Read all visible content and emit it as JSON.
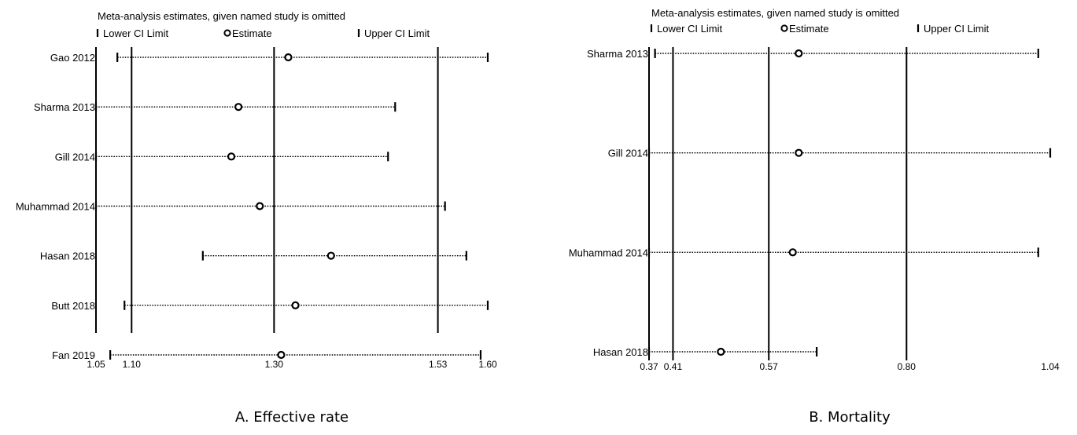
{
  "chart_data": [
    {
      "type": "forest",
      "header": "Meta-analysis estimates, given named study is omitted",
      "legend": {
        "lower": "Lower CI Limit",
        "estimate": "Estimate",
        "upper": "Upper CI Limit"
      },
      "caption": "A. Effective rate",
      "xlim": [
        1.05,
        1.6
      ],
      "ticks": [
        "1.05",
        "1.10",
        "1.30",
        "1.53",
        "1.60"
      ],
      "ref_lines": [
        1.05,
        1.1,
        1.3,
        1.53
      ],
      "studies": [
        {
          "name": "Gao 2012",
          "lower": 1.08,
          "estimate": 1.32,
          "upper": 1.6
        },
        {
          "name": "Sharma 2013",
          "lower": 1.05,
          "estimate": 1.25,
          "upper": 1.47
        },
        {
          "name": "Gill 2014",
          "lower": 1.05,
          "estimate": 1.24,
          "upper": 1.46
        },
        {
          "name": "Muhammad 2014",
          "lower": 1.05,
          "estimate": 1.28,
          "upper": 1.54
        },
        {
          "name": "Hasan 2018",
          "lower": 1.2,
          "estimate": 1.38,
          "upper": 1.57
        },
        {
          "name": "Butt 2018",
          "lower": 1.09,
          "estimate": 1.33,
          "upper": 1.6
        },
        {
          "name": "Fan 2019",
          "lower": 1.07,
          "estimate": 1.31,
          "upper": 1.59
        }
      ]
    },
    {
      "type": "forest",
      "header": "Meta-analysis estimates, given named study is omitted",
      "legend": {
        "lower": "Lower CI Limit",
        "estimate": "Estimate",
        "upper": "Upper CI Limit"
      },
      "caption": "B. Mortality",
      "xlim": [
        0.37,
        1.04
      ],
      "ticks": [
        "0.37",
        "0.41",
        "0.57",
        "0.80",
        "1.04"
      ],
      "ref_lines": [
        0.37,
        0.41,
        0.57,
        0.8
      ],
      "studies": [
        {
          "name": "Sharma 2013",
          "lower": 0.38,
          "estimate": 0.62,
          "upper": 1.02
        },
        {
          "name": "Gill 2014",
          "lower": 0.37,
          "estimate": 0.62,
          "upper": 1.04
        },
        {
          "name": "Muhammad 2014",
          "lower": 0.37,
          "estimate": 0.61,
          "upper": 1.02
        },
        {
          "name": "Hasan 2018",
          "lower": 0.37,
          "estimate": 0.49,
          "upper": 0.65
        }
      ]
    }
  ]
}
